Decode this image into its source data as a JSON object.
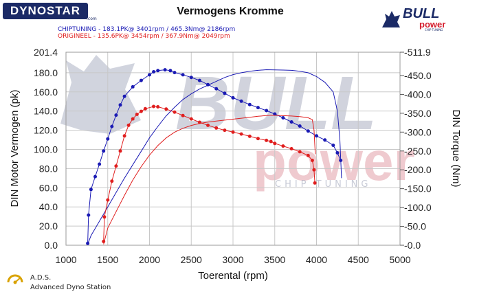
{
  "header": {
    "dyno_logo": "DYNOSTAR",
    "dyno_logo_sub": ".com",
    "title": "Vermogens Kromme",
    "legend_chiptuning": "CHIPTUNING  - 183.1PK@ 3401rpm / 465.3Nm@ 2186rpm",
    "legend_origineel": "ORIGINEEL  - 135.6PK@ 3454rpm / 367.9Nm@ 2049rpm"
  },
  "brand": {
    "logo_word": "BULL",
    "logo_sub": "power",
    "logo_tag": "CHIP TUNING",
    "watermark_word": "BULL",
    "watermark_sub": "power",
    "watermark_tag": "CHIP TUNING"
  },
  "footer": {
    "title": "A.D.S.",
    "subtitle": "Advanced Dyno Station"
  },
  "colors": {
    "chiptuning": "#1a1ab4",
    "origineel": "#e01e1e",
    "grid": "#c8c8c8",
    "watermark_gray": "#9aa0b6",
    "watermark_red": "#e3a0a8",
    "brand_navy": "#1b2a66"
  },
  "chart_data": {
    "type": "line",
    "xlabel": "Toerental (rpm)",
    "ylabel_left": "DIN Motor Vermogen (pk)",
    "ylabel_right": "DIN Torque (Nm)",
    "xlim": [
      1000,
      5000
    ],
    "x_ticks": [
      1000,
      1500,
      2000,
      2500,
      3000,
      3500,
      4000,
      4500,
      5000
    ],
    "ylim_left": [
      0,
      201.4
    ],
    "y_ticks_left": [
      0.0,
      20.0,
      40.0,
      60.0,
      80.0,
      100.0,
      120.0,
      140.0,
      160.0,
      180.0,
      201.4
    ],
    "ylim_right": [
      0,
      511.9
    ],
    "y_ticks_right": [
      0.0,
      50.0,
      100.0,
      150.0,
      200.0,
      250.0,
      300.0,
      350.0,
      400.0,
      450.0,
      511.9
    ],
    "grid": true,
    "series": [
      {
        "name": "CHIPTUNING",
        "quantity": "torque",
        "axis": "right",
        "color": "#1a1ab4",
        "x": [
          1260,
          1270,
          1300,
          1350,
          1400,
          1450,
          1500,
          1550,
          1600,
          1650,
          1700,
          1800,
          1900,
          2000,
          2050,
          2100,
          2186,
          2250,
          2300,
          2400,
          2500,
          2600,
          2700,
          2800,
          2900,
          3000,
          3100,
          3200,
          3300,
          3401,
          3500,
          3600,
          3700,
          3800,
          3900,
          4000,
          4100,
          4200,
          4250,
          4290
        ],
        "y": [
          5,
          80,
          148,
          182,
          215,
          250,
          282,
          315,
          345,
          372,
          395,
          420,
          437,
          452,
          460,
          463,
          465.3,
          463,
          458,
          452,
          445,
          437,
          426,
          415,
          403,
          391,
          382,
          373,
          365,
          357,
          348,
          338,
          327,
          316,
          303,
          290,
          279,
          265,
          245,
          225
        ]
      },
      {
        "name": "CHIPTUNING",
        "quantity": "power",
        "axis": "left",
        "color": "#1a1ab4",
        "x": [
          1260,
          1300,
          1400,
          1500,
          1600,
          1700,
          1800,
          1900,
          2000,
          2100,
          2200,
          2300,
          2400,
          2500,
          2600,
          2700,
          2800,
          2900,
          3000,
          3100,
          3200,
          3300,
          3401,
          3500,
          3600,
          3700,
          3800,
          3900,
          4000,
          4100,
          4200,
          4250,
          4280,
          4300
        ],
        "y": [
          1,
          10,
          25,
          40,
          55,
          70,
          84,
          98,
          112,
          124,
          135,
          144,
          152,
          158,
          163,
          167,
          171,
          175,
          178,
          180,
          181.5,
          182.5,
          183.1,
          183.0,
          182.8,
          182.5,
          181.5,
          180,
          176,
          170,
          160,
          140,
          110,
          70
        ]
      },
      {
        "name": "ORIGINEEL",
        "quantity": "torque",
        "axis": "right",
        "color": "#e01e1e",
        "x": [
          1450,
          1460,
          1500,
          1550,
          1600,
          1650,
          1700,
          1750,
          1800,
          1850,
          1900,
          1950,
          2049,
          2100,
          2200,
          2300,
          2400,
          2500,
          2600,
          2700,
          2800,
          2900,
          3000,
          3100,
          3200,
          3300,
          3400,
          3454,
          3500,
          3600,
          3700,
          3800,
          3900,
          3950,
          3970,
          3980
        ],
        "y": [
          10,
          75,
          120,
          170,
          210,
          250,
          290,
          318,
          335,
          347,
          355,
          362,
          367.9,
          367,
          361,
          353,
          344,
          335,
          326,
          318,
          311,
          305,
          300,
          295,
          289,
          283,
          278,
          275,
          270,
          263,
          256,
          248,
          238,
          225,
          200,
          165
        ]
      },
      {
        "name": "ORIGINEEL",
        "quantity": "power",
        "axis": "left",
        "color": "#e01e1e",
        "x": [
          1450,
          1500,
          1600,
          1700,
          1800,
          1900,
          2000,
          2100,
          2200,
          2300,
          2400,
          2500,
          2600,
          2700,
          2800,
          2900,
          3000,
          3100,
          3200,
          3300,
          3400,
          3454,
          3500,
          3600,
          3700,
          3800,
          3900,
          3950,
          3970,
          3985
        ],
        "y": [
          1,
          18,
          35,
          52,
          68,
          82,
          94,
          104,
          112,
          118,
          122,
          125,
          127,
          128.5,
          129.5,
          130.5,
          131.5,
          132.5,
          133.5,
          134.5,
          135.3,
          135.6,
          135.5,
          135.2,
          134.8,
          134.2,
          133,
          131,
          120,
          95
        ]
      }
    ]
  }
}
